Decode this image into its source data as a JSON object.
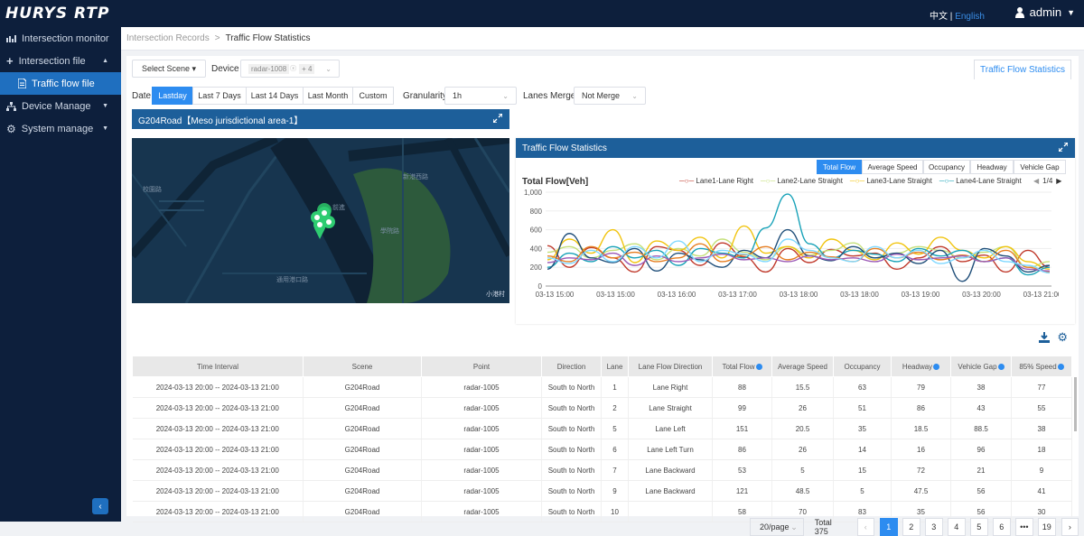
{
  "app": {
    "logo": "HURYS RTP",
    "lang_zh": "中文",
    "lang_sep": "|",
    "lang_en": "English",
    "user": "admin"
  },
  "sidebar": {
    "items": [
      {
        "label": "Intersection monitor",
        "icon": "chart-icon"
      },
      {
        "label": "Intersection file",
        "icon": "plus-icon",
        "caret": "▲"
      },
      {
        "label": "Traffic flow file",
        "icon": "file-icon",
        "active": true
      },
      {
        "label": "Device Manage",
        "icon": "network-icon",
        "caret": "▼"
      },
      {
        "label": "System manage",
        "icon": "gear-icon",
        "caret": "▼"
      }
    ],
    "collapse": "‹"
  },
  "breadcrumb": {
    "parent": "Intersection Records",
    "sep": ">",
    "current": "Traffic Flow Statistics"
  },
  "filters": {
    "scene_btn": "Select Scene ▾",
    "device_label": "Device",
    "device_tag": "radar-1008",
    "device_more": "+ 4",
    "date_label": "Date",
    "date_options": [
      "Lastday",
      "Last 7 Days",
      "Last 14 Days",
      "Last Month",
      "Custom"
    ],
    "granularity_label": "Granularity",
    "granularity_value": "1h",
    "lanes_label": "Lanes Merge",
    "lanes_value": "Not Merge"
  },
  "tab": "Traffic Flow Statistics",
  "map": {
    "title": "G204Road【Meso jurisdictional area-1】",
    "labels": [
      "新港西路",
      "前進",
      "校園路",
      "學院路",
      "通用港口路",
      "小港村"
    ]
  },
  "chart_panel": {
    "title": "Traffic Flow Statistics",
    "tabs": [
      "Total Flow",
      "Average Speed",
      "Occupancy",
      "Headway",
      "Vehicle Gap"
    ],
    "active_tab": "Total Flow",
    "page": "1/4"
  },
  "chart_data": {
    "type": "line",
    "title": "Total Flow[Veh]",
    "ylim": [
      0,
      1000
    ],
    "yticks": [
      "0",
      "200",
      "400",
      "600",
      "800",
      "1,000"
    ],
    "xticks": [
      "03-13 15:00",
      "03-13 15:00",
      "03-13 16:00",
      "03-13 17:00",
      "03-13 18:00",
      "03-13 18:00",
      "03-13 19:00",
      "03-13 20:00",
      "03-13 21:00"
    ],
    "legend": [
      "Lane1-Lane Right",
      "Lane2-Lane Straight",
      "Lane3-Lane Straight",
      "Lane4-Lane Straight"
    ],
    "series": [
      {
        "name": "Lane1-Lane Right",
        "color": "#c0392b",
        "values": [
          430,
          200,
          410,
          300,
          150,
          420,
          380,
          220,
          460,
          310,
          150,
          400,
          250,
          390,
          320,
          350,
          180,
          300,
          420,
          260,
          330,
          150,
          380,
          200
        ]
      },
      {
        "name": "Lane2-Lane Straight",
        "color": "#c5e07a",
        "values": [
          360,
          420,
          300,
          380,
          450,
          280,
          400,
          320,
          500,
          360,
          280,
          420,
          330,
          380,
          460,
          300,
          350,
          420,
          380,
          300,
          360,
          420,
          200,
          260
        ]
      },
      {
        "name": "Lane3-Lane Straight",
        "color": "#f1c40f",
        "values": [
          280,
          500,
          350,
          600,
          250,
          480,
          380,
          520,
          300,
          640,
          350,
          420,
          300,
          500,
          380,
          280,
          460,
          340,
          520,
          380,
          300,
          420,
          260,
          180
        ]
      },
      {
        "name": "Lane4-Lane Straight",
        "color": "#17a2b8",
        "values": [
          200,
          350,
          260,
          420,
          300,
          380,
          220,
          400,
          350,
          300,
          620,
          980,
          450,
          300,
          380,
          340,
          260,
          400,
          320,
          380,
          260,
          300,
          120,
          200
        ]
      },
      {
        "color": "#1f4e79",
        "values": [
          180,
          560,
          300,
          250,
          400,
          160,
          350,
          280,
          200,
          380,
          300,
          600,
          320,
          270,
          420,
          300,
          350,
          240,
          380,
          50,
          400,
          320,
          150,
          220
        ]
      },
      {
        "color": "#e67e22",
        "values": [
          320,
          260,
          420,
          300,
          360,
          260,
          300,
          450,
          260,
          330,
          420,
          280,
          360,
          310,
          260,
          400,
          300,
          360,
          280,
          330,
          260,
          380,
          200,
          150
        ]
      },
      {
        "color": "#9b59b6",
        "values": [
          250,
          300,
          280,
          350,
          220,
          320,
          260,
          300,
          340,
          280,
          300,
          260,
          320,
          280,
          300,
          260,
          340,
          280,
          300,
          320,
          260,
          300,
          180,
          160
        ]
      },
      {
        "color": "#7fd8ff",
        "values": [
          300,
          240,
          380,
          260,
          420,
          300,
          480,
          260,
          380,
          340,
          260,
          500,
          380,
          300,
          260,
          420,
          300,
          380,
          240,
          300,
          380,
          260,
          220,
          140
        ]
      }
    ]
  },
  "table": {
    "icons": [
      "download-icon",
      "settings-icon"
    ],
    "headers": [
      "Time Interval",
      "Scene",
      "Point",
      "Direction",
      "Lane",
      "Lane Flow Direction",
      "Total Flow",
      "Average Speed",
      "Occupancy",
      "Headway",
      "Vehicle Gap",
      "85% Speed"
    ],
    "info_cols": [
      6,
      9,
      10,
      11
    ],
    "rows": [
      [
        "2024-03-13 20:00 -- 2024-03-13 21:00",
        "G204Road",
        "radar-1005",
        "South to North",
        "1",
        "Lane Right",
        "88",
        "15.5",
        "63",
        "79",
        "38",
        "77"
      ],
      [
        "2024-03-13 20:00 -- 2024-03-13 21:00",
        "G204Road",
        "radar-1005",
        "South to North",
        "2",
        "Lane Straight",
        "99",
        "26",
        "51",
        "86",
        "43",
        "55"
      ],
      [
        "2024-03-13 20:00 -- 2024-03-13 21:00",
        "G204Road",
        "radar-1005",
        "South to North",
        "5",
        "Lane Left",
        "151",
        "20.5",
        "35",
        "18.5",
        "88.5",
        "38"
      ],
      [
        "2024-03-13 20:00 -- 2024-03-13 21:00",
        "G204Road",
        "radar-1005",
        "South to North",
        "6",
        "Lane Left Turn",
        "86",
        "26",
        "14",
        "16",
        "96",
        "18"
      ],
      [
        "2024-03-13 20:00 -- 2024-03-13 21:00",
        "G204Road",
        "radar-1005",
        "South to North",
        "7",
        "Lane Backward",
        "53",
        "5",
        "15",
        "72",
        "21",
        "9"
      ],
      [
        "2024-03-13 20:00 -- 2024-03-13 21:00",
        "G204Road",
        "radar-1005",
        "South to North",
        "9",
        "Lane Backward",
        "121",
        "48.5",
        "5",
        "47.5",
        "56",
        "41"
      ],
      [
        "2024-03-13 20:00 -- 2024-03-13 21:00",
        "G204Road",
        "radar-1005",
        "South to North",
        "10",
        "",
        "58",
        "70",
        "83",
        "35",
        "56",
        "30"
      ]
    ]
  },
  "pager": {
    "page_size": "20/page",
    "total": "Total 375",
    "prev": "‹",
    "next": "›",
    "pages": [
      "1",
      "2",
      "3",
      "4",
      "5",
      "6",
      "•••",
      "19"
    ],
    "active": "1"
  }
}
